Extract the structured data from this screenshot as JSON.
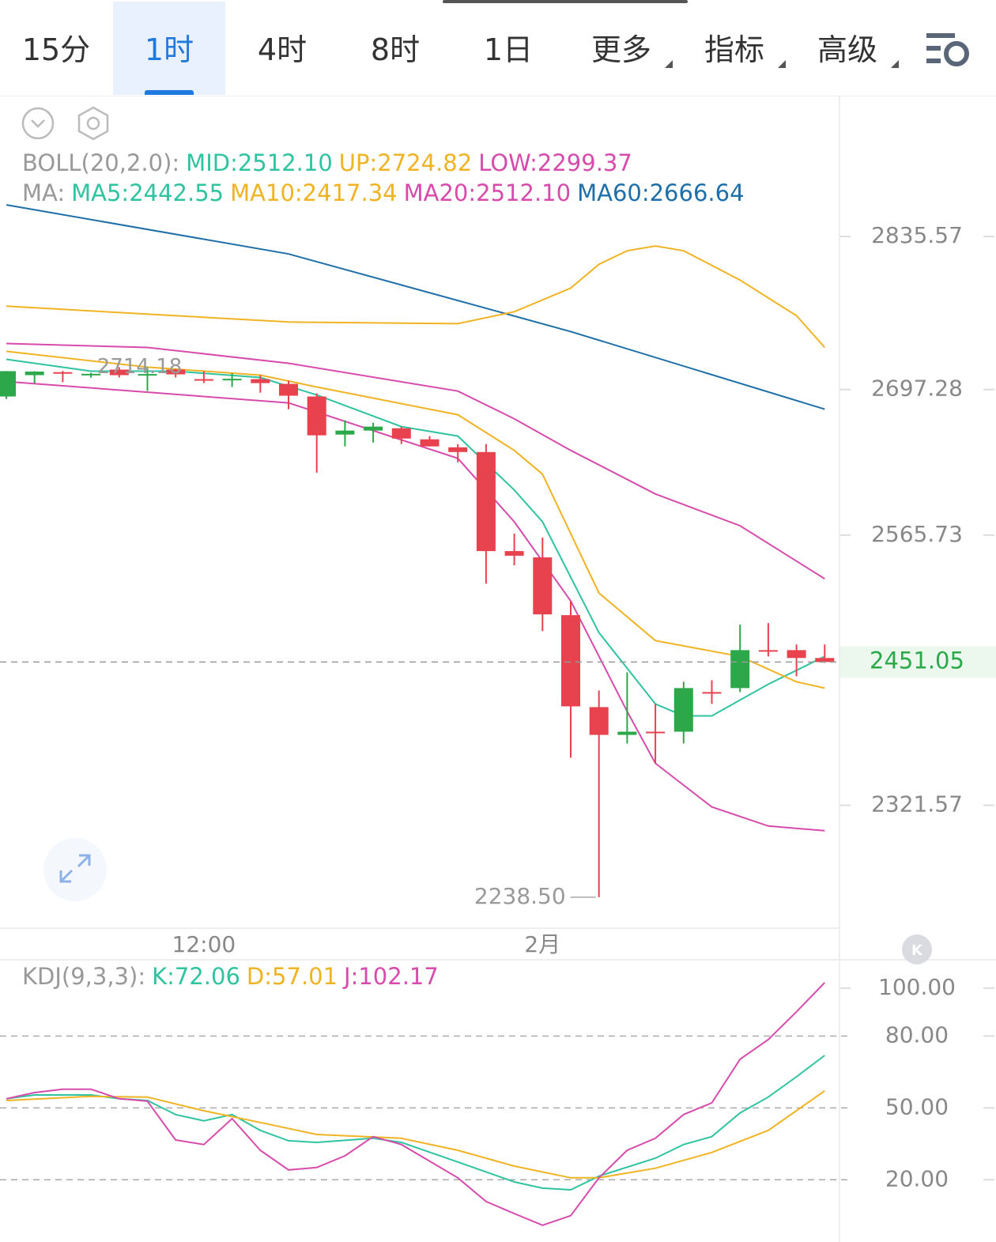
{
  "tabs": [
    "15分",
    "1时",
    "4时",
    "8时",
    "1日",
    "更多",
    "指标",
    "高级"
  ],
  "active_tab": 1,
  "chart_data": [
    {
      "type": "candlestick",
      "categories": [
        null,
        null,
        null,
        null,
        null,
        null,
        null,
        "12:00",
        null,
        null,
        null,
        null,
        null,
        null,
        null,
        null,
        null,
        null,
        null,
        "2月",
        null,
        null,
        null,
        null,
        null,
        null,
        null,
        null,
        null,
        null
      ],
      "open": [
        2691.0,
        2710.3,
        2713.0,
        2711.0,
        2715.3,
        2711.0,
        2715.3,
        2706.7,
        2706.7,
        2706.7,
        2702.4,
        2691.0,
        2656.6,
        2660.2,
        2662.3,
        2652.3,
        2645.1,
        2640.8,
        2551.3,
        2545.6,
        2493.4,
        2410.3,
        2385.2,
        2388.1,
        2388.1,
        2423.9,
        2427.5,
        2461.8,
        2461.8,
        2454.7
      ],
      "high": [
        2714.0,
        2713.9,
        2714.18,
        2712.5,
        2717.5,
        2717.5,
        2716.0,
        2713.9,
        2712.0,
        2710.3,
        2705.3,
        2693.8,
        2669.5,
        2667.3,
        2663.8,
        2655.2,
        2648.0,
        2648.0,
        2567.1,
        2563.5,
        2506.2,
        2425.3,
        2441.8,
        2413.2,
        2433.2,
        2434.6,
        2484.8,
        2486.2,
        2466.9,
        2466.9
      ],
      "low": [
        2688.8,
        2703.1,
        2704.0,
        2708.0,
        2708.2,
        2696.0,
        2708.2,
        2703.1,
        2699.6,
        2694.5,
        2679.5,
        2622.2,
        2645.9,
        2649.4,
        2648.0,
        2645.9,
        2631.5,
        2522.0,
        2538.5,
        2479.0,
        2364.5,
        2238.5,
        2377.4,
        2359.5,
        2377.4,
        2413.2,
        2423.9,
        2456.1,
        2438.2,
        2450.4
      ],
      "close": [
        2713.9,
        2713.5,
        2712.0,
        2711.5,
        2710.3,
        2711.3,
        2711.0,
        2706.2,
        2707.0,
        2703.1,
        2691.7,
        2655.9,
        2660.2,
        2663.8,
        2653.0,
        2645.9,
        2640.8,
        2551.3,
        2547.1,
        2494.1,
        2411.0,
        2385.2,
        2388.1,
        2387.5,
        2427.5,
        2423.3,
        2461.8,
        2461.5,
        2454.7,
        2451.05
      ],
      "up_color": "#2ca84a",
      "down_color": "#e8424f",
      "max_label": "2714.18",
      "min_label": "2238.50",
      "ylim": [
        2212,
        2960
      ],
      "yticks": [
        2835.57,
        2697.28,
        2565.73,
        2321.57
      ],
      "legend_rows": [
        {
          "label": "BOLL(20,2.0):",
          "items": [
            {
              "text": "MID:2512.10",
              "color": "#30c3a0"
            },
            {
              "text": "UP:2724.82",
              "color": "#f0b323"
            },
            {
              "text": "LOW:2299.37",
              "color": "#d64bab"
            }
          ]
        },
        {
          "label": "MA:",
          "items": [
            {
              "text": "MA5:2442.55",
              "color": "#30c3a0"
            },
            {
              "text": "MA10:2417.34",
              "color": "#f0b323"
            },
            {
              "text": "MA20:2512.10",
              "color": "#d64bab"
            },
            {
              "text": "MA60:2666.64",
              "color": "#1e6fa8"
            }
          ]
        }
      ],
      "overlays": [
        {
          "color": "#1e6fa8",
          "x": [
            0,
            10,
            20,
            29
          ],
          "values": [
            2864.2,
            2819.8,
            2749.7,
            2679.5
          ]
        },
        {
          "color": "#f0b323",
          "x": [
            0,
            10,
            16,
            18,
            20,
            21,
            22,
            23,
            24,
            26,
            28,
            29
          ],
          "values": [
            2772.6,
            2758.3,
            2756.8,
            2767.6,
            2789.0,
            2810.5,
            2822.7,
            2827.0,
            2822.7,
            2796.2,
            2764.0,
            2735.3
          ]
        },
        {
          "color": "#d64bab",
          "x": [
            0,
            5,
            10,
            16,
            18,
            20,
            23,
            26,
            29
          ],
          "values": [
            2738.9,
            2735.3,
            2721.0,
            2695.9,
            2670.9,
            2642.3,
            2602.9,
            2574.2,
            2526.3
          ]
        },
        {
          "color": "#d64bab",
          "x": [
            0,
            10,
            16,
            18,
            20,
            22,
            23,
            25,
            27,
            29
          ],
          "values": [
            2704.5,
            2685.2,
            2635.1,
            2577.8,
            2506.2,
            2406.4,
            2359.5,
            2320.1,
            2302.9,
            2298.6
          ]
        },
        {
          "color": "#30c3a0",
          "x": [
            0,
            3,
            6,
            9,
            11,
            14,
            16,
            18,
            19,
            21,
            23,
            24,
            25,
            27,
            29
          ],
          "values": [
            2724.6,
            2713.9,
            2713.9,
            2708.2,
            2692.4,
            2663.8,
            2655.2,
            2606.5,
            2577.8,
            2477.6,
            2413.2,
            2402.4,
            2402.4,
            2431.0,
            2456.1
          ]
        },
        {
          "color": "#f0b323",
          "x": [
            0,
            5,
            9,
            11,
            16,
            18,
            19,
            21,
            23,
            26,
            28,
            29
          ],
          "values": [
            2731.8,
            2717.5,
            2710.3,
            2699.6,
            2674.5,
            2642.3,
            2620.8,
            2513.4,
            2470.4,
            2456.1,
            2433.2,
            2427.5
          ]
        }
      ]
    },
    {
      "type": "line",
      "legend_label": "KDJ(9,3,3):",
      "ylim": [
        -4,
        111.5
      ],
      "yticks": [
        {
          "value": 100,
          "label": "100.00"
        },
        {
          "value": 80,
          "label": "80.00"
        },
        {
          "value": 50,
          "label": "50.00"
        },
        {
          "value": 20,
          "label": "20.00"
        }
      ],
      "series": [
        {
          "name": "K:72.06",
          "color": "#30c3a0",
          "x": [
            0,
            1,
            3,
            4,
            5,
            6,
            7,
            8,
            9,
            10,
            11,
            13,
            14,
            16,
            18,
            19,
            20,
            21,
            23,
            24,
            25,
            26,
            27,
            28,
            29
          ],
          "values": [
            53.8,
            55.4,
            55.4,
            53.8,
            53.1,
            47.2,
            44.6,
            47.2,
            40.6,
            36.3,
            35.6,
            37.3,
            35.6,
            27.4,
            19.1,
            16.5,
            15.8,
            21.5,
            29.0,
            34.7,
            38.0,
            47.9,
            54.5,
            63.0,
            71.9
          ]
        },
        {
          "name": "D:57.01",
          "color": "#f0b323",
          "x": [
            0,
            3,
            5,
            7,
            9,
            11,
            14,
            16,
            18,
            20,
            21,
            23,
            25,
            27,
            29
          ],
          "values": [
            53.1,
            54.8,
            54.5,
            48.8,
            43.9,
            38.9,
            37.3,
            32.3,
            25.7,
            20.8,
            20.8,
            24.8,
            31.4,
            40.6,
            57.1
          ]
        },
        {
          "name": "J:102.17",
          "color": "#d64bab",
          "x": [
            0,
            1,
            2,
            3,
            4,
            5,
            6,
            7,
            8,
            9,
            10,
            11,
            12,
            13,
            14,
            16,
            17,
            18,
            19,
            20,
            21,
            22,
            23,
            24,
            25,
            26,
            27,
            28,
            29
          ],
          "values": [
            53.8,
            56.4,
            57.8,
            57.8,
            53.8,
            52.8,
            36.6,
            34.7,
            45.5,
            32.3,
            24.1,
            25.1,
            30.0,
            38.0,
            34.7,
            20.8,
            10.9,
            5.9,
            1.0,
            5.0,
            20.8,
            32.3,
            37.3,
            47.2,
            52.1,
            70.3,
            78.5,
            90.1,
            102.3
          ]
        }
      ]
    }
  ]
}
